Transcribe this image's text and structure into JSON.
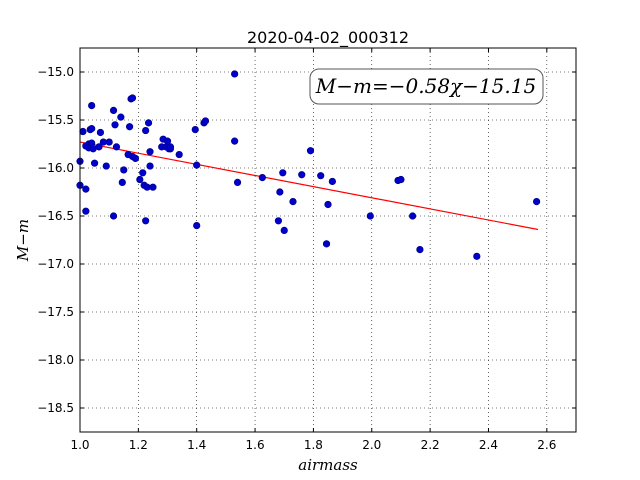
{
  "chart_data": {
    "type": "scatter",
    "title": "2020-04-02_000312",
    "xlabel": "airmass",
    "ylabel": "M−m",
    "xlim": [
      1.0,
      2.7
    ],
    "ylim": [
      -18.75,
      -14.75
    ],
    "xticks": [
      "1.0",
      "1.2",
      "1.4",
      "1.6",
      "1.8",
      "2.0",
      "2.2",
      "2.4",
      "2.6"
    ],
    "yticks": [
      "−15.0",
      "−15.5",
      "−16.0",
      "−16.5",
      "−17.0",
      "−17.5",
      "−18.0",
      "−18.5"
    ],
    "grid": true,
    "annotation": "M−m=−0.58χ−15.15",
    "fit": {
      "slope": -0.58,
      "intercept": -15.15,
      "x_range": [
        1.0,
        2.57
      ],
      "color": "#ff0000"
    },
    "point_color": "#0000cc",
    "points": [
      [
        1.0,
        -15.93
      ],
      [
        1.0,
        -16.18
      ],
      [
        1.01,
        -15.62
      ],
      [
        1.02,
        -16.45
      ],
      [
        1.02,
        -16.22
      ],
      [
        1.02,
        -15.77
      ],
      [
        1.03,
        -15.75
      ],
      [
        1.03,
        -15.79
      ],
      [
        1.035,
        -15.6
      ],
      [
        1.04,
        -15.35
      ],
      [
        1.04,
        -15.74
      ],
      [
        1.04,
        -15.59
      ],
      [
        1.045,
        -15.8
      ],
      [
        1.05,
        -15.95
      ],
      [
        1.065,
        -15.78
      ],
      [
        1.07,
        -15.63
      ],
      [
        1.08,
        -15.73
      ],
      [
        1.09,
        -15.98
      ],
      [
        1.1,
        -15.73
      ],
      [
        1.115,
        -15.4
      ],
      [
        1.115,
        -16.5
      ],
      [
        1.12,
        -15.55
      ],
      [
        1.125,
        -15.78
      ],
      [
        1.14,
        -15.47
      ],
      [
        1.145,
        -16.15
      ],
      [
        1.15,
        -16.02
      ],
      [
        1.165,
        -15.86
      ],
      [
        1.17,
        -15.57
      ],
      [
        1.175,
        -15.28
      ],
      [
        1.18,
        -15.27
      ],
      [
        1.18,
        -15.88
      ],
      [
        1.19,
        -15.9
      ],
      [
        1.205,
        -16.12
      ],
      [
        1.215,
        -16.05
      ],
      [
        1.22,
        -16.18
      ],
      [
        1.225,
        -16.55
      ],
      [
        1.225,
        -15.61
      ],
      [
        1.23,
        -16.2
      ],
      [
        1.235,
        -15.53
      ],
      [
        1.24,
        -15.98
      ],
      [
        1.24,
        -15.83
      ],
      [
        1.25,
        -16.2
      ],
      [
        1.28,
        -15.78
      ],
      [
        1.285,
        -15.7
      ],
      [
        1.295,
        -15.78
      ],
      [
        1.3,
        -15.72
      ],
      [
        1.305,
        -15.8
      ],
      [
        1.31,
        -15.8
      ],
      [
        1.31,
        -15.78
      ],
      [
        1.34,
        -15.86
      ],
      [
        1.395,
        -15.6
      ],
      [
        1.4,
        -15.97
      ],
      [
        1.4,
        -16.6
      ],
      [
        1.425,
        -15.53
      ],
      [
        1.43,
        -15.51
      ],
      [
        1.53,
        -15.02
      ],
      [
        1.53,
        -15.72
      ],
      [
        1.54,
        -16.15
      ],
      [
        1.625,
        -16.1
      ],
      [
        1.68,
        -16.55
      ],
      [
        1.685,
        -16.25
      ],
      [
        1.695,
        -16.05
      ],
      [
        1.7,
        -16.65
      ],
      [
        1.73,
        -16.35
      ],
      [
        1.76,
        -16.07
      ],
      [
        1.79,
        -15.82
      ],
      [
        1.825,
        -16.08
      ],
      [
        1.845,
        -16.79
      ],
      [
        1.85,
        -16.38
      ],
      [
        1.865,
        -16.14
      ],
      [
        1.995,
        -16.5
      ],
      [
        2.09,
        -16.13
      ],
      [
        2.1,
        -16.12
      ],
      [
        2.14,
        -16.5
      ],
      [
        2.165,
        -16.85
      ],
      [
        2.36,
        -16.92
      ],
      [
        2.565,
        -16.35
      ]
    ]
  }
}
